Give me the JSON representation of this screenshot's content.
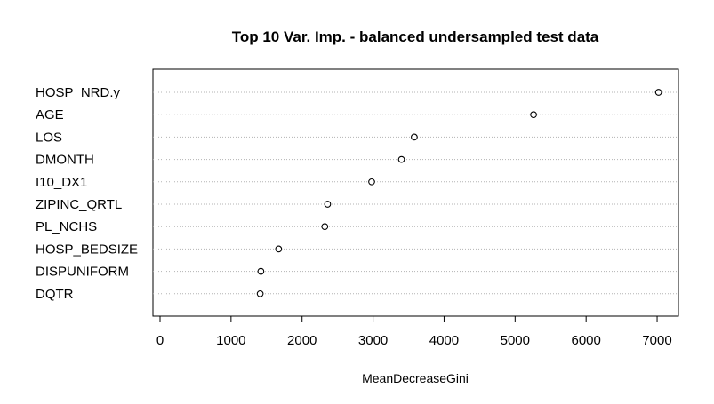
{
  "chart_data": {
    "type": "dotchart",
    "title": "Top 10 Var. Imp. - balanced undersampled test data",
    "xlabel": "MeanDecreaseGini",
    "ylabel": "",
    "xlim": [
      -100,
      7300
    ],
    "xticks": [
      0,
      1000,
      2000,
      3000,
      4000,
      5000,
      6000,
      7000
    ],
    "grid": "dotted horizontal guide per row",
    "categories": [
      "HOSP_NRD.y",
      "AGE",
      "LOS",
      "DMONTH",
      "I10_DX1",
      "ZIPINC_QRTL",
      "PL_NCHS",
      "HOSP_BEDSIZE",
      "DISPUNIFORM",
      "DQTR"
    ],
    "values": [
      7020,
      5260,
      3580,
      3400,
      2980,
      2360,
      2320,
      1670,
      1420,
      1410
    ]
  }
}
